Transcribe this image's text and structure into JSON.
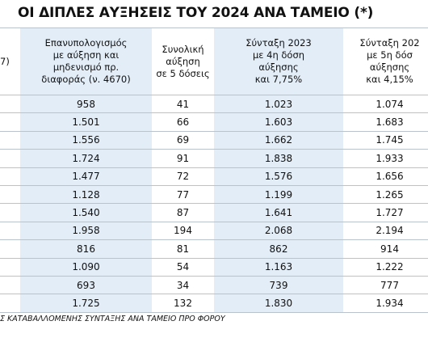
{
  "header": {
    "title": "ΟΙ ΔΙΠΛΕΣ ΑΥΞΗΣΕΙΣ ΤΟΥ 2024 ΑΝΑ ΤΑΜΕΙΟ (*)"
  },
  "table": {
    "columns": [
      [
        "7)"
      ],
      [
        "Επανυπολογισμός",
        "με αύξηση και",
        "μηδενισμό πρ.",
        "διαφοράς (ν. 4670)"
      ],
      [
        "Συνολική",
        "αύξηση",
        "σε 5 δόσεις"
      ],
      [
        "Σύνταξη 2023",
        "με 4η δόση",
        "αύξησης",
        "και 7,75%"
      ],
      [
        "Σύνταξη 202",
        "με 5η δόσ",
        "αύξησης",
        "και 4,15%"
      ]
    ],
    "rows": [
      [
        "958",
        "41",
        "1.023",
        "1.074"
      ],
      [
        "1.501",
        "66",
        "1.603",
        "1.683"
      ],
      [
        "1.556",
        "69",
        "1.662",
        "1.745"
      ],
      [
        "1.724",
        "91",
        "1.838",
        "1.933"
      ],
      [
        "1.477",
        "72",
        "1.576",
        "1.656"
      ],
      [
        "1.128",
        "77",
        "1.199",
        "1.265"
      ],
      [
        "1.540",
        "87",
        "1.641",
        "1.727"
      ],
      [
        "1.958",
        "194",
        "2.068",
        "2.194"
      ],
      [
        "816",
        "81",
        "862",
        "914"
      ],
      [
        "1.090",
        "54",
        "1.163",
        "1.222"
      ],
      [
        "693",
        "34",
        "739",
        "777"
      ],
      [
        "1.725",
        "132",
        "1.830",
        "1.934"
      ]
    ]
  },
  "footer": {
    "note": "Σ ΚΑΤΑΒΑΛΛΟΜΕΝΗΣ ΣΥΝΤΑΞΗΣ ΑΝΑ ΤΑΜΕΙΟ ΠΡΟ ΦΟΡΟΥ"
  }
}
